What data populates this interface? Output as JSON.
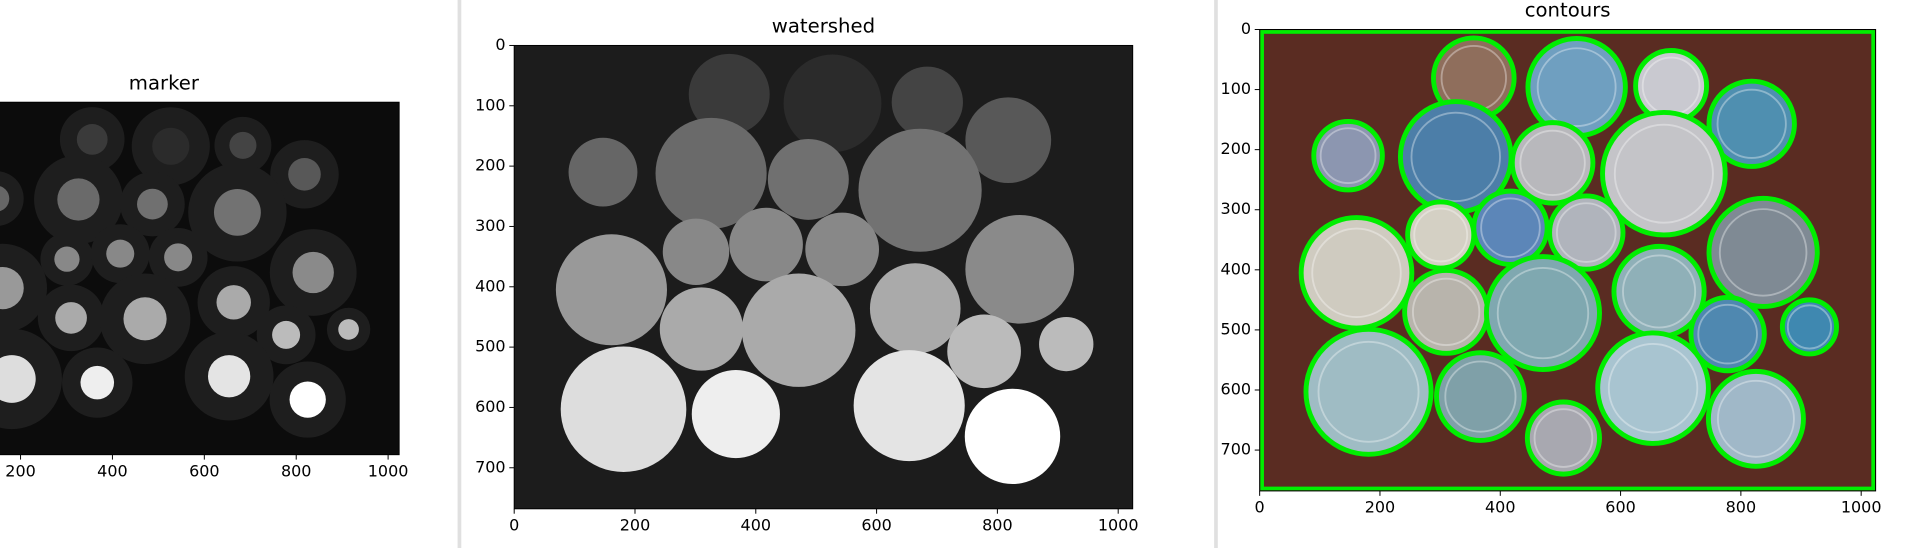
{
  "chart_data": [
    {
      "type": "image",
      "title": "marker",
      "xlim": [
        0,
        1024
      ],
      "ylim": [
        768,
        0
      ],
      "xticks": [
        200,
        400,
        600,
        800,
        1000
      ]
    },
    {
      "type": "image",
      "title": "watershed",
      "xlim": [
        0,
        1024
      ],
      "ylim": [
        768,
        0
      ],
      "xticks": [
        0,
        200,
        400,
        600,
        800,
        1000
      ],
      "yticks": [
        0,
        100,
        200,
        300,
        400,
        500,
        600,
        700
      ]
    },
    {
      "type": "image",
      "title": "contours",
      "xlim": [
        0,
        1024
      ],
      "ylim": [
        768,
        0
      ],
      "xticks": [
        0,
        200,
        400,
        600,
        800,
        1000
      ],
      "yticks": [
        0,
        100,
        200,
        300,
        400,
        500,
        600,
        700
      ]
    }
  ]
}
